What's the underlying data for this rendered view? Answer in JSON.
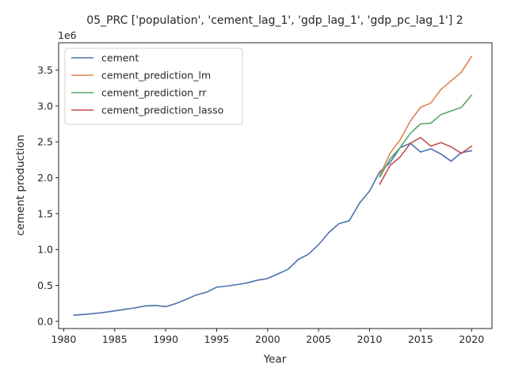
{
  "chart_data": {
    "type": "line",
    "title": "05_PRC ['population', 'cement_lag_1', 'gdp_lag_1', 'gdp_pc_lag_1'] 2",
    "xlabel": "Year",
    "ylabel": "cement production",
    "y_offset_label": "1e6",
    "xlim": [
      1979.5,
      2022.0
    ],
    "ylim": [
      -0.1,
      3.88
    ],
    "xticks": [
      1980,
      1985,
      1990,
      1995,
      2000,
      2005,
      2010,
      2015,
      2020
    ],
    "xtick_labels": [
      "1980",
      "1985",
      "1990",
      "1995",
      "2000",
      "2005",
      "2010",
      "2015",
      "2020"
    ],
    "yticks": [
      0.0,
      0.5,
      1.0,
      1.5,
      2.0,
      2.5,
      3.0,
      3.5
    ],
    "ytick_labels": [
      "0.0",
      "0.5",
      "1.0",
      "1.5",
      "2.0",
      "2.5",
      "3.0",
      "3.5"
    ],
    "legend_position": "top-left",
    "grid": false,
    "series": [
      {
        "name": "cement",
        "color": "#4c72b0",
        "x": [
          1981,
          1982,
          1983,
          1984,
          1985,
          1986,
          1987,
          1988,
          1989,
          1990,
          1991,
          1992,
          1993,
          1994,
          1995,
          1996,
          1997,
          1998,
          1999,
          2000,
          2001,
          2002,
          2003,
          2004,
          2005,
          2006,
          2007,
          2008,
          2009,
          2010,
          2011,
          2012,
          2013,
          2014,
          2015,
          2016,
          2017,
          2018,
          2019,
          2020
        ],
        "y": [
          0.085,
          0.096,
          0.11,
          0.125,
          0.146,
          0.168,
          0.188,
          0.215,
          0.222,
          0.205,
          0.248,
          0.305,
          0.368,
          0.405,
          0.476,
          0.491,
          0.512,
          0.536,
          0.573,
          0.597,
          0.661,
          0.725,
          0.862,
          0.934,
          1.069,
          1.237,
          1.361,
          1.4,
          1.644,
          1.816,
          2.085,
          2.21,
          2.419,
          2.48,
          2.359,
          2.403,
          2.33,
          2.23,
          2.35,
          2.377
        ]
      },
      {
        "name": "cement_prediction_lm",
        "color": "#dd8452",
        "x": [
          2011,
          2012,
          2013,
          2014,
          2015,
          2016,
          2017,
          2018,
          2019,
          2020
        ],
        "y": [
          2.03,
          2.34,
          2.53,
          2.79,
          2.98,
          3.04,
          3.23,
          3.35,
          3.47,
          3.69
        ]
      },
      {
        "name": "cement_prediction_rr",
        "color": "#55a868",
        "x": [
          2011,
          2012,
          2013,
          2014,
          2015,
          2016,
          2017,
          2018,
          2019,
          2020
        ],
        "y": [
          2.01,
          2.26,
          2.42,
          2.62,
          2.75,
          2.76,
          2.88,
          2.93,
          2.98,
          3.15
        ]
      },
      {
        "name": "cement_prediction_lasso",
        "color": "#c44e52",
        "x": [
          2011,
          2012,
          2013,
          2014,
          2015,
          2016,
          2017,
          2018,
          2019,
          2020
        ],
        "y": [
          1.91,
          2.17,
          2.29,
          2.48,
          2.56,
          2.44,
          2.49,
          2.43,
          2.34,
          2.44
        ]
      }
    ]
  }
}
